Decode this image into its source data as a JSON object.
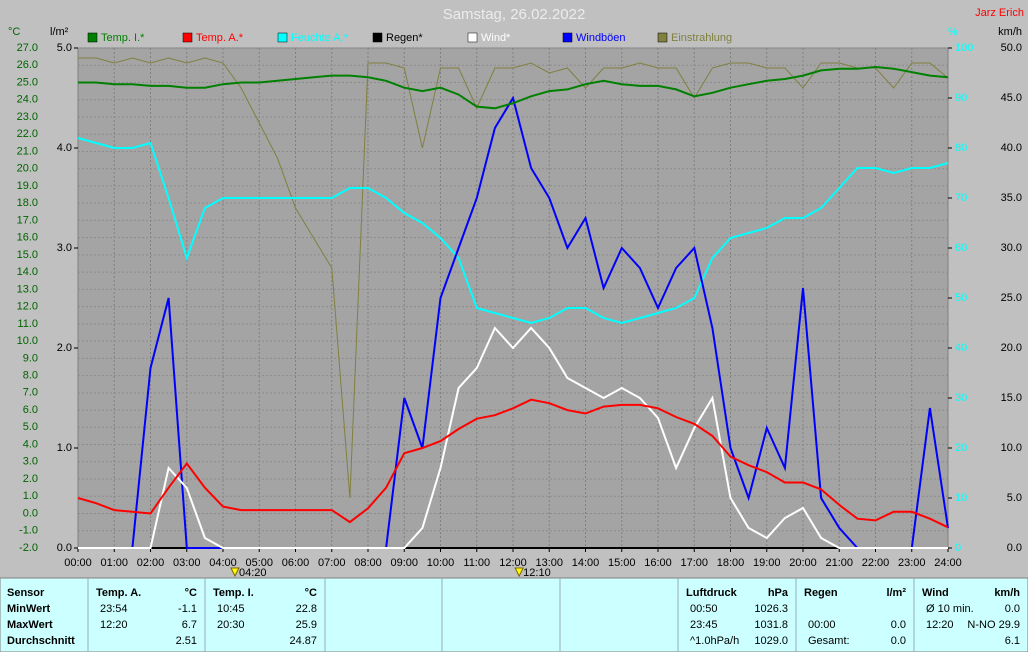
{
  "chart_data": {
    "type": "line",
    "title": "Samstag, 26.02.2022",
    "author": "Jarz Erich",
    "grid": true,
    "x": [
      0,
      0.5,
      1,
      1.5,
      2,
      2.5,
      3,
      3.5,
      4,
      4.5,
      5,
      5.5,
      6,
      6.5,
      7,
      7.5,
      8,
      8.5,
      9,
      9.5,
      10,
      10.5,
      11,
      11.5,
      12,
      12.5,
      13,
      13.5,
      14,
      14.5,
      15,
      15.5,
      16,
      16.5,
      17,
      17.5,
      18,
      18.5,
      19,
      19.5,
      20,
      20.5,
      21,
      21.5,
      22,
      22.5,
      23,
      23.5,
      24
    ],
    "xlim": [
      0,
      24
    ],
    "xticks": [
      {
        "value": 0,
        "label": "00:00"
      },
      {
        "value": 1,
        "label": "01:00"
      },
      {
        "value": 2,
        "label": "02:00"
      },
      {
        "value": 3,
        "label": "03:00"
      },
      {
        "value": 4,
        "label": "04:00"
      },
      {
        "value": 5,
        "label": "05:00"
      },
      {
        "value": 6,
        "label": "06:00"
      },
      {
        "value": 7,
        "label": "07:00"
      },
      {
        "value": 8,
        "label": "08:00"
      },
      {
        "value": 9,
        "label": "09:00"
      },
      {
        "value": 10,
        "label": "10:00"
      },
      {
        "value": 11,
        "label": "11:00"
      },
      {
        "value": 12,
        "label": "12:00"
      },
      {
        "value": 13,
        "label": "13:00"
      },
      {
        "value": 14,
        "label": "14:00"
      },
      {
        "value": 15,
        "label": "15:00"
      },
      {
        "value": 16,
        "label": "16:00"
      },
      {
        "value": 17,
        "label": "17:00"
      },
      {
        "value": 18,
        "label": "18:00"
      },
      {
        "value": 19,
        "label": "19:00"
      },
      {
        "value": 20,
        "label": "20:00"
      },
      {
        "value": 21,
        "label": "21:00"
      },
      {
        "value": 22,
        "label": "22:00"
      },
      {
        "value": 23,
        "label": "23:00"
      },
      {
        "value": 24,
        "label": "24:00"
      }
    ],
    "ylabel": "°C",
    "ylim": [
      -2,
      27
    ],
    "yticks": [
      {
        "value": -2,
        "label": "-2.0"
      },
      {
        "value": -1,
        "label": "-1.0"
      },
      {
        "value": 0,
        "label": "0.0"
      },
      {
        "value": 1,
        "label": "1.0"
      },
      {
        "value": 2,
        "label": "2.0"
      },
      {
        "value": 3,
        "label": "3.0"
      },
      {
        "value": 4,
        "label": "4.0"
      },
      {
        "value": 5,
        "label": "5.0"
      },
      {
        "value": 6,
        "label": "6.0"
      },
      {
        "value": 7,
        "label": "7.0"
      },
      {
        "value": 8,
        "label": "8.0"
      },
      {
        "value": 9,
        "label": "9.0"
      },
      {
        "value": 10,
        "label": "10.0"
      },
      {
        "value": 11,
        "label": "11.0"
      },
      {
        "value": 12,
        "label": "12.0"
      },
      {
        "value": 13,
        "label": "13.0"
      },
      {
        "value": 14,
        "label": "14.0"
      },
      {
        "value": 15,
        "label": "15.0"
      },
      {
        "value": 16,
        "label": "16.0"
      },
      {
        "value": 17,
        "label": "17.0"
      },
      {
        "value": 18,
        "label": "18.0"
      },
      {
        "value": 19,
        "label": "19.0"
      },
      {
        "value": 20,
        "label": "20.0"
      },
      {
        "value": 21,
        "label": "21.0"
      },
      {
        "value": 22,
        "label": "22.0"
      },
      {
        "value": 23,
        "label": "23.0"
      },
      {
        "value": 24,
        "label": "24.0"
      },
      {
        "value": 25,
        "label": "25.0"
      },
      {
        "value": 26,
        "label": "26.0"
      },
      {
        "value": 27,
        "label": "27.0"
      }
    ],
    "y3label": "l/m²",
    "y3lim": [
      0,
      5
    ],
    "y3ticks": [
      {
        "value": 0,
        "label": "0.0"
      },
      {
        "value": 1,
        "label": "1.0"
      },
      {
        "value": 2,
        "label": "2.0"
      },
      {
        "value": 3,
        "label": "3.0"
      },
      {
        "value": 4,
        "label": "4.0"
      },
      {
        "value": 5,
        "label": "5.0"
      }
    ],
    "y2label": "%",
    "y2lim": [
      0,
      100
    ],
    "y2ticks": [
      0,
      10,
      20,
      30,
      40,
      50,
      60,
      70,
      80,
      90,
      100
    ],
    "y4label": "km/h",
    "y4lim": [
      0,
      50
    ],
    "y4ticks": [
      {
        "value": 0,
        "label": "0.0"
      },
      {
        "value": 5,
        "label": "5.0"
      },
      {
        "value": 10,
        "label": "10.0"
      },
      {
        "value": 15,
        "label": "15.0"
      },
      {
        "value": 20,
        "label": "20.0"
      },
      {
        "value": 25,
        "label": "25.0"
      },
      {
        "value": 30,
        "label": "30.0"
      },
      {
        "value": 35,
        "label": "35.0"
      },
      {
        "value": 40,
        "label": "40.0"
      },
      {
        "value": 45,
        "label": "45.0"
      },
      {
        "value": 50,
        "label": "50.0"
      }
    ],
    "annotations": [
      {
        "x": 4.33,
        "text": "04:20"
      },
      {
        "x": 12.17,
        "text": "12:10"
      }
    ],
    "series": [
      {
        "name": "Einstrahlung",
        "color": "#808040",
        "axis": "y2",
        "values": [
          98,
          98,
          97,
          98,
          97,
          98,
          97,
          98,
          97,
          92,
          85,
          78,
          68,
          62,
          56,
          10,
          97,
          97,
          96,
          80,
          96,
          96,
          88,
          96,
          96,
          97,
          95,
          96,
          92,
          96,
          96,
          97,
          96,
          96,
          90,
          96,
          97,
          97,
          96,
          96,
          92,
          97,
          97,
          96,
          96,
          92,
          97,
          97,
          94
        ]
      },
      {
        "name": "Feuchte A.*",
        "color": "#00ffff",
        "axis": "y2",
        "values": [
          82,
          81,
          80,
          80,
          81,
          70,
          58,
          68,
          70,
          70,
          70,
          70,
          70,
          70,
          70,
          72,
          72,
          70,
          67,
          65,
          62,
          58,
          48,
          47,
          46,
          45,
          46,
          48,
          48,
          46,
          45,
          46,
          47,
          48,
          50,
          58,
          62,
          63,
          64,
          66,
          66,
          68,
          72,
          76,
          76,
          75,
          76,
          76,
          77
        ]
      },
      {
        "name": "Regen*",
        "color": "#000000",
        "axis": "y3",
        "values": [
          0,
          0,
          0,
          0,
          0,
          0,
          0,
          0,
          0,
          0,
          0,
          0,
          0,
          0,
          0,
          0,
          0,
          0,
          0,
          0,
          0,
          0,
          0,
          0,
          0,
          0,
          0,
          0,
          0,
          0,
          0,
          0,
          0,
          0,
          0,
          0,
          0,
          0,
          0,
          0,
          0,
          0,
          0,
          0,
          0,
          0,
          0,
          0,
          0
        ]
      },
      {
        "name": "Windböen",
        "color": "#0000ff",
        "axis": "y4",
        "values": [
          0,
          0,
          0,
          0,
          18,
          25,
          0,
          0,
          0,
          0,
          0,
          0,
          0,
          0,
          0,
          0,
          0,
          0,
          15,
          10,
          25,
          30,
          35,
          42,
          45,
          38,
          35,
          30,
          33,
          26,
          30,
          28,
          24,
          28,
          30,
          22,
          10,
          5,
          12,
          8,
          26,
          5,
          2,
          0,
          0,
          0,
          0,
          14,
          2
        ]
      },
      {
        "name": "Wind*",
        "color": "#ffffff",
        "axis": "y4",
        "values": [
          0,
          0,
          0,
          0,
          0,
          8,
          6,
          1,
          0,
          0,
          0,
          0,
          0,
          0,
          0,
          0,
          0,
          0,
          0,
          2,
          8,
          16,
          18,
          22,
          20,
          22,
          20,
          17,
          16,
          15,
          16,
          15,
          13,
          8,
          12,
          15,
          5,
          2,
          1,
          3,
          4,
          1,
          0,
          0,
          0,
          0,
          0,
          0,
          0
        ]
      },
      {
        "name": "Temp. A.*",
        "color": "#ff0000",
        "axis": "y",
        "values": [
          0.9,
          0.6,
          0.2,
          0.1,
          0.0,
          1.5,
          2.9,
          1.5,
          0.4,
          0.2,
          0.2,
          0.2,
          0.2,
          0.2,
          0.2,
          -0.5,
          0.3,
          1.5,
          3.5,
          3.8,
          4.2,
          4.9,
          5.5,
          5.7,
          6.1,
          6.6,
          6.4,
          6.0,
          5.8,
          6.2,
          6.3,
          6.3,
          6.1,
          5.6,
          5.2,
          4.5,
          3.3,
          2.8,
          2.4,
          1.8,
          1.8,
          1.4,
          0.5,
          -0.3,
          -0.4,
          0.1,
          0.1,
          -0.3,
          -0.8
        ]
      },
      {
        "name": "Temp. I.*",
        "color": "#008000",
        "axis": "y",
        "values": [
          25.0,
          25.0,
          24.9,
          24.9,
          24.8,
          24.8,
          24.7,
          24.7,
          24.9,
          25.0,
          25.0,
          25.1,
          25.2,
          25.3,
          25.4,
          25.4,
          25.3,
          25.1,
          24.7,
          24.5,
          24.7,
          24.3,
          23.6,
          23.5,
          23.8,
          24.2,
          24.5,
          24.6,
          24.9,
          25.1,
          24.9,
          24.8,
          24.8,
          24.6,
          24.2,
          24.4,
          24.7,
          24.9,
          25.1,
          25.2,
          25.4,
          25.7,
          25.8,
          25.8,
          25.9,
          25.8,
          25.6,
          25.4,
          25.3
        ]
      }
    ],
    "legend_order": [
      6,
      5,
      1,
      2,
      4,
      3,
      0
    ]
  },
  "stats": {
    "row_labels": [
      "Sensor",
      "MinWert",
      "MaxWert",
      "Durchschnitt"
    ],
    "blocks": [
      {
        "name": "Temp. A.",
        "unit": "°C",
        "rows": [
          [
            "23:54",
            "-1.1"
          ],
          [
            "12:20",
            "6.7"
          ],
          [
            null,
            "2.51"
          ]
        ]
      },
      {
        "name": "Temp. I.",
        "unit": "°C",
        "rows": [
          [
            "10:45",
            "22.8"
          ],
          [
            "20:30",
            "25.9"
          ],
          [
            null,
            "24.87"
          ]
        ]
      },
      {
        "name": "Luftdruck",
        "unit": "hPa",
        "rows": [
          [
            "00:50",
            "1026.3"
          ],
          [
            "23:45",
            "1031.8"
          ],
          [
            "^1.0hPa/h",
            "1029.0"
          ]
        ]
      },
      {
        "name": "Regen",
        "unit": "l/m²",
        "rows": [
          [
            null,
            null
          ],
          [
            "00:00",
            "0.0"
          ],
          [
            "Gesamt:",
            "0.0"
          ]
        ]
      },
      {
        "name": "Wind",
        "unit": "km/h",
        "rows": [
          [
            "Ø 10 min.",
            "0.0"
          ],
          [
            "12:20",
            "N-NO 29.9"
          ],
          [
            null,
            "6.1"
          ]
        ]
      }
    ]
  }
}
